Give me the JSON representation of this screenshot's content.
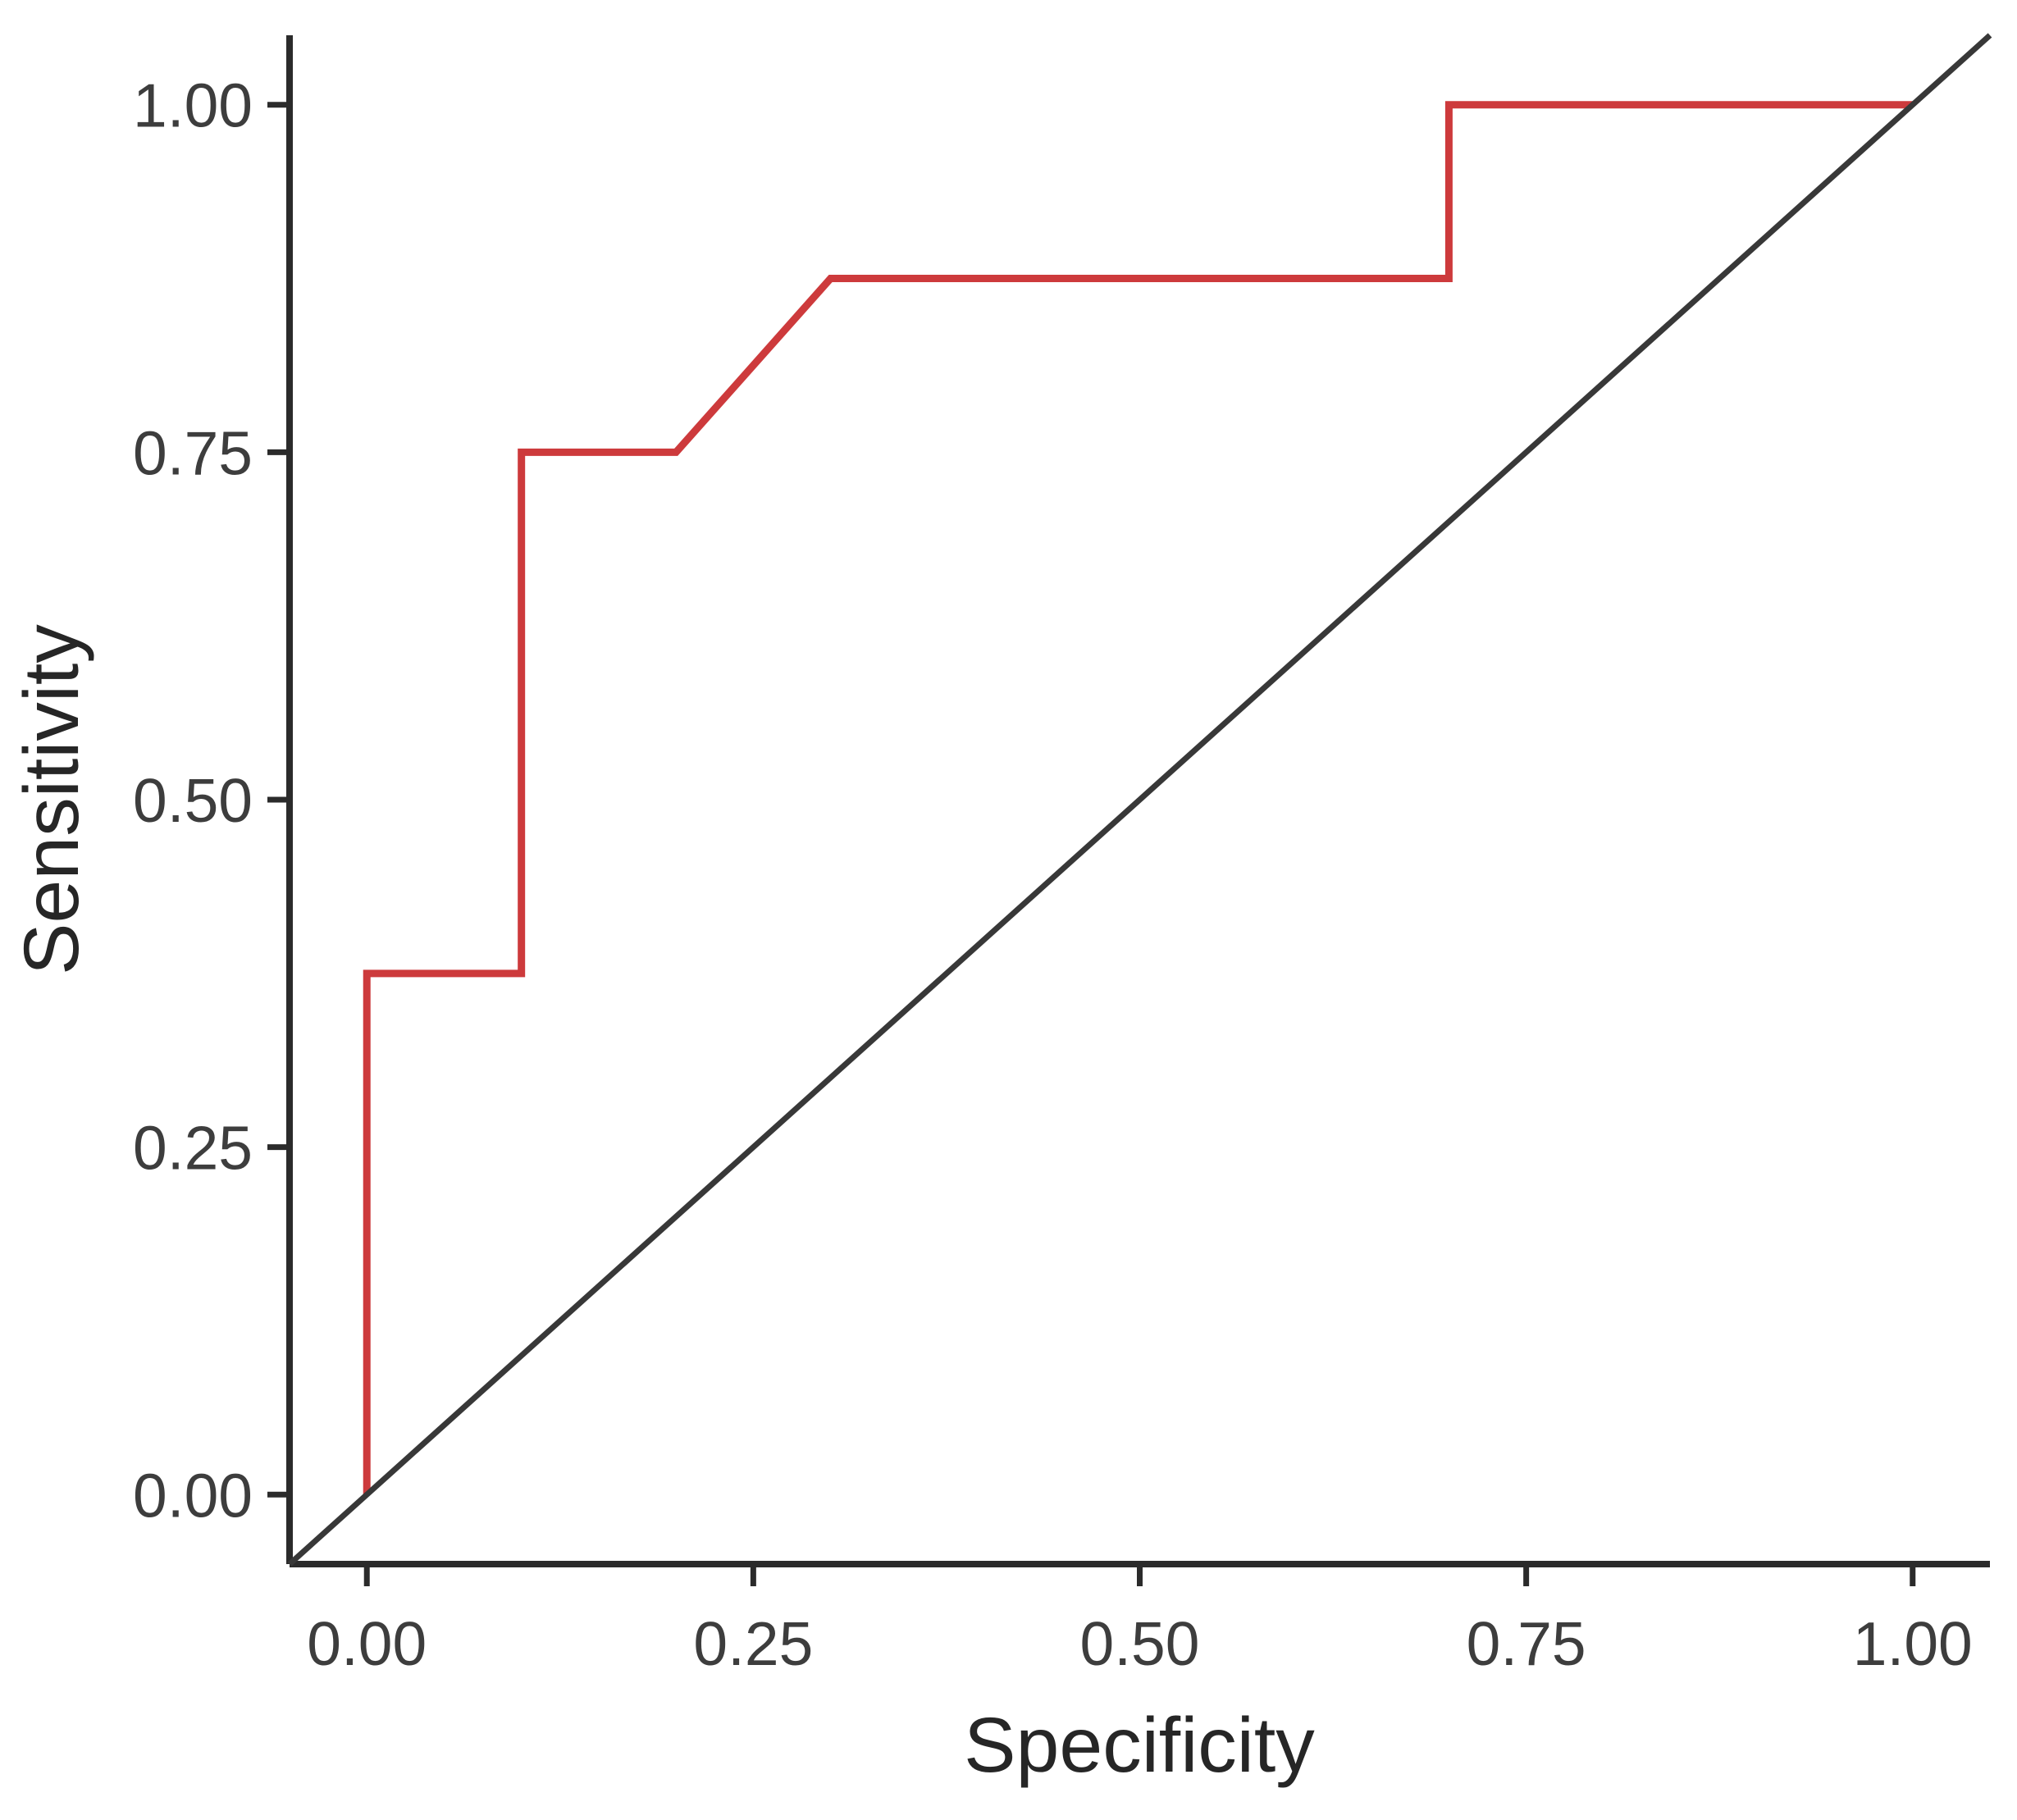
{
  "chart_data": {
    "type": "line",
    "subtype": "roc-curve",
    "xlabel": "Specificity",
    "ylabel": "Sensitivity",
    "xlim": [
      -0.05,
      1.05
    ],
    "ylim": [
      -0.05,
      1.05
    ],
    "grid": false,
    "legend": "none",
    "x_ticks": {
      "values": [
        0.0,
        0.25,
        0.5,
        0.75,
        1.0
      ],
      "labels": [
        "0.00",
        "0.25",
        "0.50",
        "0.75",
        "1.00"
      ]
    },
    "y_ticks": {
      "values": [
        0.0,
        0.25,
        0.5,
        0.75,
        1.0
      ],
      "labels": [
        "0.00",
        "0.25",
        "0.50",
        "0.75",
        "1.00"
      ]
    },
    "series": [
      {
        "name": "roc-curve",
        "color": "#cd3a3c",
        "stroke_width": 9,
        "points": [
          [
            0.0,
            0.0
          ],
          [
            0.0,
            0.375
          ],
          [
            0.1,
            0.375
          ],
          [
            0.1,
            0.75
          ],
          [
            0.2,
            0.75
          ],
          [
            0.3,
            0.875
          ],
          [
            0.7,
            0.875
          ],
          [
            0.7,
            1.0
          ],
          [
            1.0,
            1.0
          ]
        ]
      },
      {
        "name": "reference-diagonal",
        "color": "#383838",
        "stroke_width": 7,
        "points": [
          [
            -0.05,
            -0.05
          ],
          [
            1.05,
            1.05
          ]
        ]
      }
    ]
  },
  "styles": {
    "background": "#ffffff",
    "axis_line_color": "#2b2b2b",
    "tick_mark_color": "#2b2b2b",
    "tick_label_color": "#3d3d3d",
    "axis_title_color": "#262626"
  }
}
